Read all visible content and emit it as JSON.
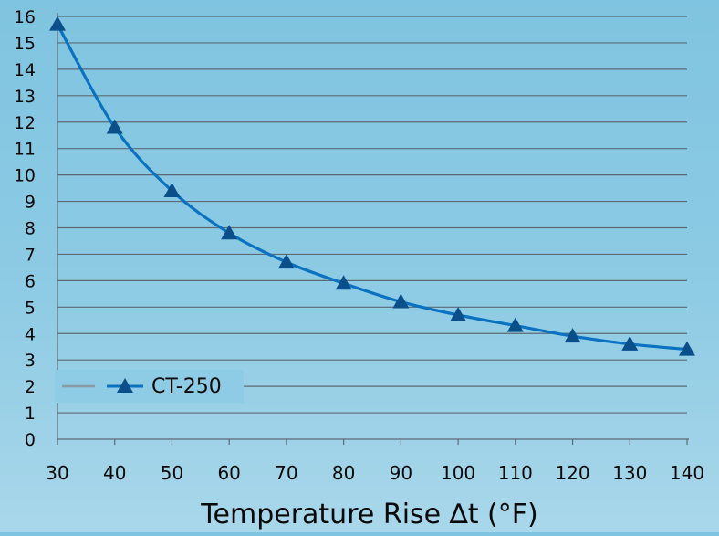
{
  "chart_data": {
    "type": "line",
    "title": "",
    "xlabel": "Temperature Rise ∆t (°F)",
    "ylabel": "",
    "x": [
      30,
      40,
      50,
      60,
      70,
      80,
      90,
      100,
      110,
      120,
      130,
      140
    ],
    "xlim": [
      30,
      140
    ],
    "ylim": [
      0,
      16
    ],
    "x_ticks": [
      "30",
      "40",
      "50",
      "60",
      "70",
      "80",
      "90",
      "100",
      "110",
      "120",
      "130",
      "140"
    ],
    "y_ticks": [
      "0",
      "1",
      "2",
      "3",
      "4",
      "5",
      "6",
      "7",
      "8",
      "9",
      "10",
      "11",
      "12",
      "13",
      "14",
      "15",
      "16"
    ],
    "grid": "horizontal",
    "legend_position": "bottom-left",
    "series": [
      {
        "name": "CT-250",
        "marker": "triangle",
        "color": "#0a72c0",
        "marker_color": "#0b4f8a",
        "values": [
          15.7,
          11.8,
          9.4,
          7.8,
          6.7,
          5.9,
          5.2,
          4.7,
          4.3,
          3.9,
          3.6,
          3.4
        ]
      }
    ]
  }
}
